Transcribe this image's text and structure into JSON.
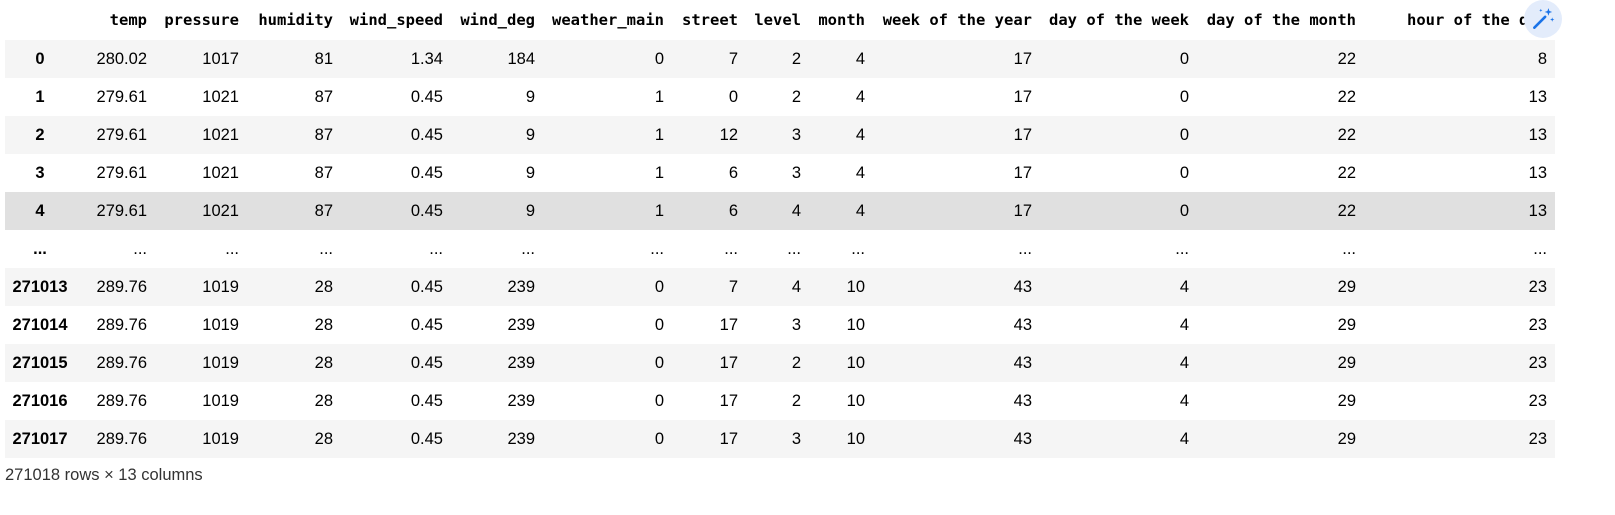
{
  "dataframe": {
    "columns": [
      "temp",
      "pressure",
      "humidity",
      "wind_speed",
      "wind_deg",
      "weather_main",
      "street",
      "level",
      "month",
      "week of the year",
      "day of the week",
      "day of the month",
      "hour of the day"
    ],
    "rows": [
      {
        "index": "0",
        "cells": [
          "280.02",
          "1017",
          "81",
          "1.34",
          "184",
          "0",
          "7",
          "2",
          "4",
          "17",
          "0",
          "22",
          "8"
        ]
      },
      {
        "index": "1",
        "cells": [
          "279.61",
          "1021",
          "87",
          "0.45",
          "9",
          "1",
          "0",
          "2",
          "4",
          "17",
          "0",
          "22",
          "13"
        ]
      },
      {
        "index": "2",
        "cells": [
          "279.61",
          "1021",
          "87",
          "0.45",
          "9",
          "1",
          "12",
          "3",
          "4",
          "17",
          "0",
          "22",
          "13"
        ]
      },
      {
        "index": "3",
        "cells": [
          "279.61",
          "1021",
          "87",
          "0.45",
          "9",
          "1",
          "6",
          "3",
          "4",
          "17",
          "0",
          "22",
          "13"
        ]
      },
      {
        "index": "4",
        "cells": [
          "279.61",
          "1021",
          "87",
          "0.45",
          "9",
          "1",
          "6",
          "4",
          "4",
          "17",
          "0",
          "22",
          "13"
        ]
      },
      {
        "index": "...",
        "cells": [
          "...",
          "...",
          "...",
          "...",
          "...",
          "...",
          "...",
          "...",
          "...",
          "...",
          "...",
          "...",
          "..."
        ]
      },
      {
        "index": "271013",
        "cells": [
          "289.76",
          "1019",
          "28",
          "0.45",
          "239",
          "0",
          "7",
          "4",
          "10",
          "43",
          "4",
          "29",
          "23"
        ]
      },
      {
        "index": "271014",
        "cells": [
          "289.76",
          "1019",
          "28",
          "0.45",
          "239",
          "0",
          "17",
          "3",
          "10",
          "43",
          "4",
          "29",
          "23"
        ]
      },
      {
        "index": "271015",
        "cells": [
          "289.76",
          "1019",
          "28",
          "0.45",
          "239",
          "0",
          "17",
          "2",
          "10",
          "43",
          "4",
          "29",
          "23"
        ]
      },
      {
        "index": "271016",
        "cells": [
          "289.76",
          "1019",
          "28",
          "0.45",
          "239",
          "0",
          "17",
          "2",
          "10",
          "43",
          "4",
          "29",
          "23"
        ]
      },
      {
        "index": "271017",
        "cells": [
          "289.76",
          "1019",
          "28",
          "0.45",
          "239",
          "0",
          "17",
          "3",
          "10",
          "43",
          "4",
          "29",
          "23"
        ]
      }
    ],
    "hovered_row_index": "4",
    "shape_note": "271018 rows × 13 columns"
  },
  "toolbar": {
    "magic_icon": "magic-wand-sparkle-icon",
    "accent_color": "#1a73e8"
  }
}
